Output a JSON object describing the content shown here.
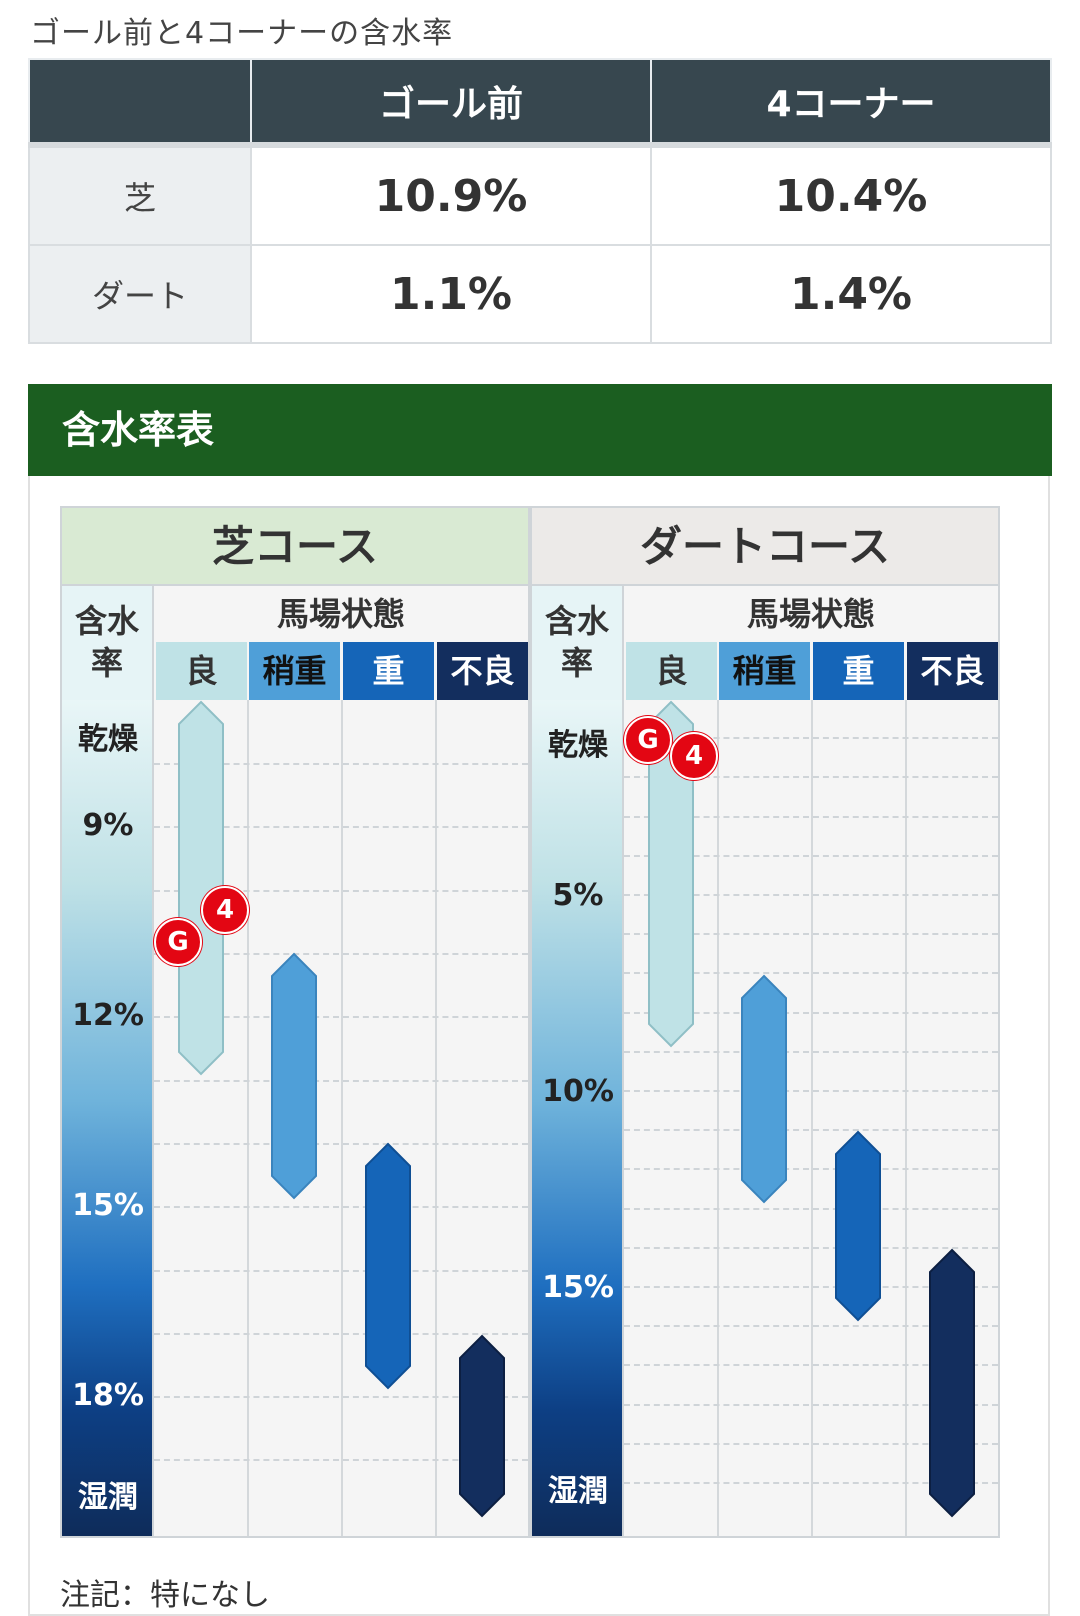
{
  "caption": "ゴール前と4コーナーの含水率",
  "summary": {
    "header": [
      "",
      "ゴール前",
      "4コーナー"
    ],
    "rows": [
      {
        "label": "芝",
        "goal": "10.9%",
        "corner": "10.4%"
      },
      {
        "label": "ダート",
        "goal": "1.1%",
        "corner": "1.4%"
      }
    ]
  },
  "section_title": "含水率表",
  "note": "注記：特になし",
  "panels": {
    "shiba": {
      "title": "芝コース",
      "rate_head": "含水\n率",
      "state_head": "馬場状態",
      "conditions": [
        "良",
        "稍重",
        "重",
        "不良"
      ],
      "top_label": "乾燥",
      "bottom_label": "湿潤",
      "ticks": [
        "9%",
        "12%",
        "15%",
        "18%"
      ],
      "markers": [
        {
          "label": "G"
        },
        {
          "label": "4"
        }
      ]
    },
    "dirt": {
      "title": "ダートコース",
      "rate_head": "含水\n率",
      "state_head": "馬場状態",
      "conditions": [
        "良",
        "稍重",
        "重",
        "不良"
      ],
      "top_label": "乾燥",
      "bottom_label": "湿潤",
      "ticks": [
        "5%",
        "10%",
        "15%"
      ],
      "markers": [
        {
          "label": "G"
        },
        {
          "label": "4"
        }
      ]
    }
  },
  "colors": {
    "header_dark": "#37474f",
    "section_green": "#1b5e20",
    "marker_red": "#e30613",
    "cond_ryo": "#bfe2e6",
    "cond_yayaomo": "#4f9fd8",
    "cond_omo": "#1565b8",
    "cond_furyo": "#132e5e"
  }
}
